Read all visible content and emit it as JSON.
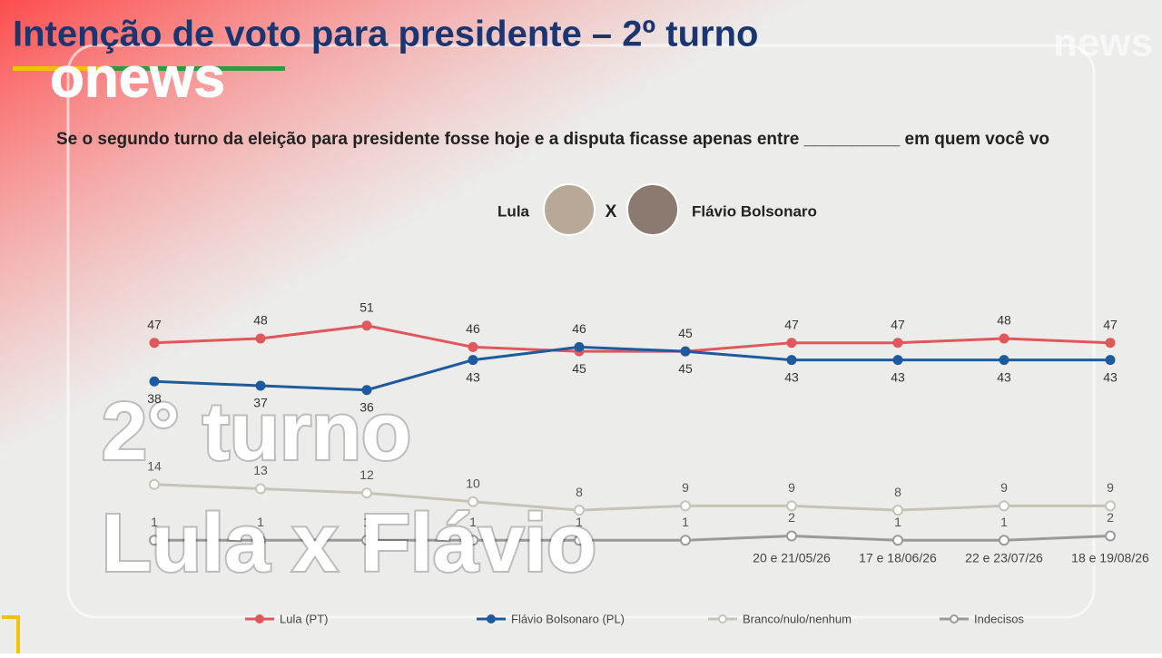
{
  "header": {
    "title": "Intenção de voto para presidente – 2º turno",
    "logo": "news"
  },
  "question": "Se o segundo turno da eleição para presidente fosse hoje e a disputa ficasse apenas entre __________ em quem você vo",
  "matchup": {
    "left": "Lula",
    "versus": "X",
    "right": "Flávio Bolsonaro"
  },
  "overlay": {
    "brand": "onews",
    "line1": "2° turno",
    "line2": "Lula x Flávio"
  },
  "chart_data": {
    "type": "line",
    "categories": [
      null,
      null,
      null,
      null,
      null,
      null,
      "20 e 21/05/26",
      "17 e 18/06/26",
      "22 e 23/07/26",
      "18 e 19/08/26"
    ],
    "series": [
      {
        "name": "Lula (PT)",
        "color": "#e0575c",
        "values": [
          47,
          48,
          51,
          46,
          45,
          45,
          47,
          47,
          48,
          47
        ]
      },
      {
        "name": "Flávio Bolsonaro (PL)",
        "color": "#1d5a9e",
        "values": [
          38,
          37,
          36,
          43,
          46,
          45,
          43,
          43,
          43,
          43
        ]
      },
      {
        "name": "Branco/nulo/nenhum",
        "color": "#c6c4b6",
        "values": [
          14,
          13,
          12,
          10,
          8,
          9,
          9,
          8,
          9,
          9
        ]
      },
      {
        "name": "Indecisos",
        "color": "#9a9a9a",
        "values": [
          1,
          1,
          1,
          1,
          1,
          1,
          2,
          1,
          1,
          2
        ]
      }
    ]
  }
}
